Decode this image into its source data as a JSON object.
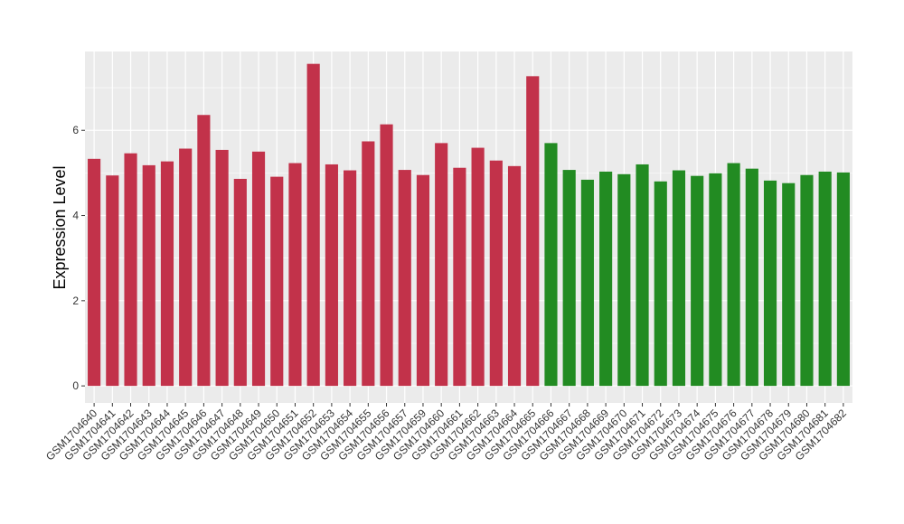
{
  "chart_data": {
    "type": "bar",
    "title": "",
    "xlabel": "",
    "ylabel": "Expression Level",
    "ylim": [
      -0.4,
      7.85
    ],
    "yticks": [
      0,
      2,
      4,
      6
    ],
    "grid": true,
    "categories": [
      "GSM1704640",
      "GSM1704641",
      "GSM1704642",
      "GSM1704643",
      "GSM1704644",
      "GSM1704645",
      "GSM1704646",
      "GSM1704647",
      "GSM1704648",
      "GSM1704649",
      "GSM1704650",
      "GSM1704651",
      "GSM1704652",
      "GSM1704653",
      "GSM1704654",
      "GSM1704655",
      "GSM1704656",
      "GSM1704657",
      "GSM1704659",
      "GSM1704660",
      "GSM1704661",
      "GSM1704662",
      "GSM1704663",
      "GSM1704664",
      "GSM1704665",
      "GSM1704666",
      "GSM1704667",
      "GSM1704668",
      "GSM1704669",
      "GSM1704670",
      "GSM1704671",
      "GSM1704672",
      "GSM1704673",
      "GSM1704674",
      "GSM1704675",
      "GSM1704676",
      "GSM1704677",
      "GSM1704678",
      "GSM1704679",
      "GSM1704680",
      "GSM1704681",
      "GSM1704682"
    ],
    "values": [
      5.33,
      4.94,
      5.46,
      5.18,
      5.27,
      5.57,
      6.36,
      5.54,
      4.86,
      5.5,
      4.91,
      5.23,
      7.56,
      5.2,
      5.06,
      5.74,
      6.14,
      5.07,
      4.95,
      5.7,
      5.12,
      5.59,
      5.29,
      5.16,
      7.27,
      5.7,
      5.07,
      4.84,
      5.03,
      4.97,
      5.2,
      4.8,
      5.06,
      4.93,
      4.99,
      5.23,
      5.1,
      4.82,
      4.76,
      4.95,
      5.03,
      5.01
    ],
    "group_sizes": [
      25,
      17
    ],
    "colors": [
      "#c2324a",
      "#228b22"
    ],
    "panel_background": "#ebebeb",
    "grid_color": "#ffffff"
  }
}
